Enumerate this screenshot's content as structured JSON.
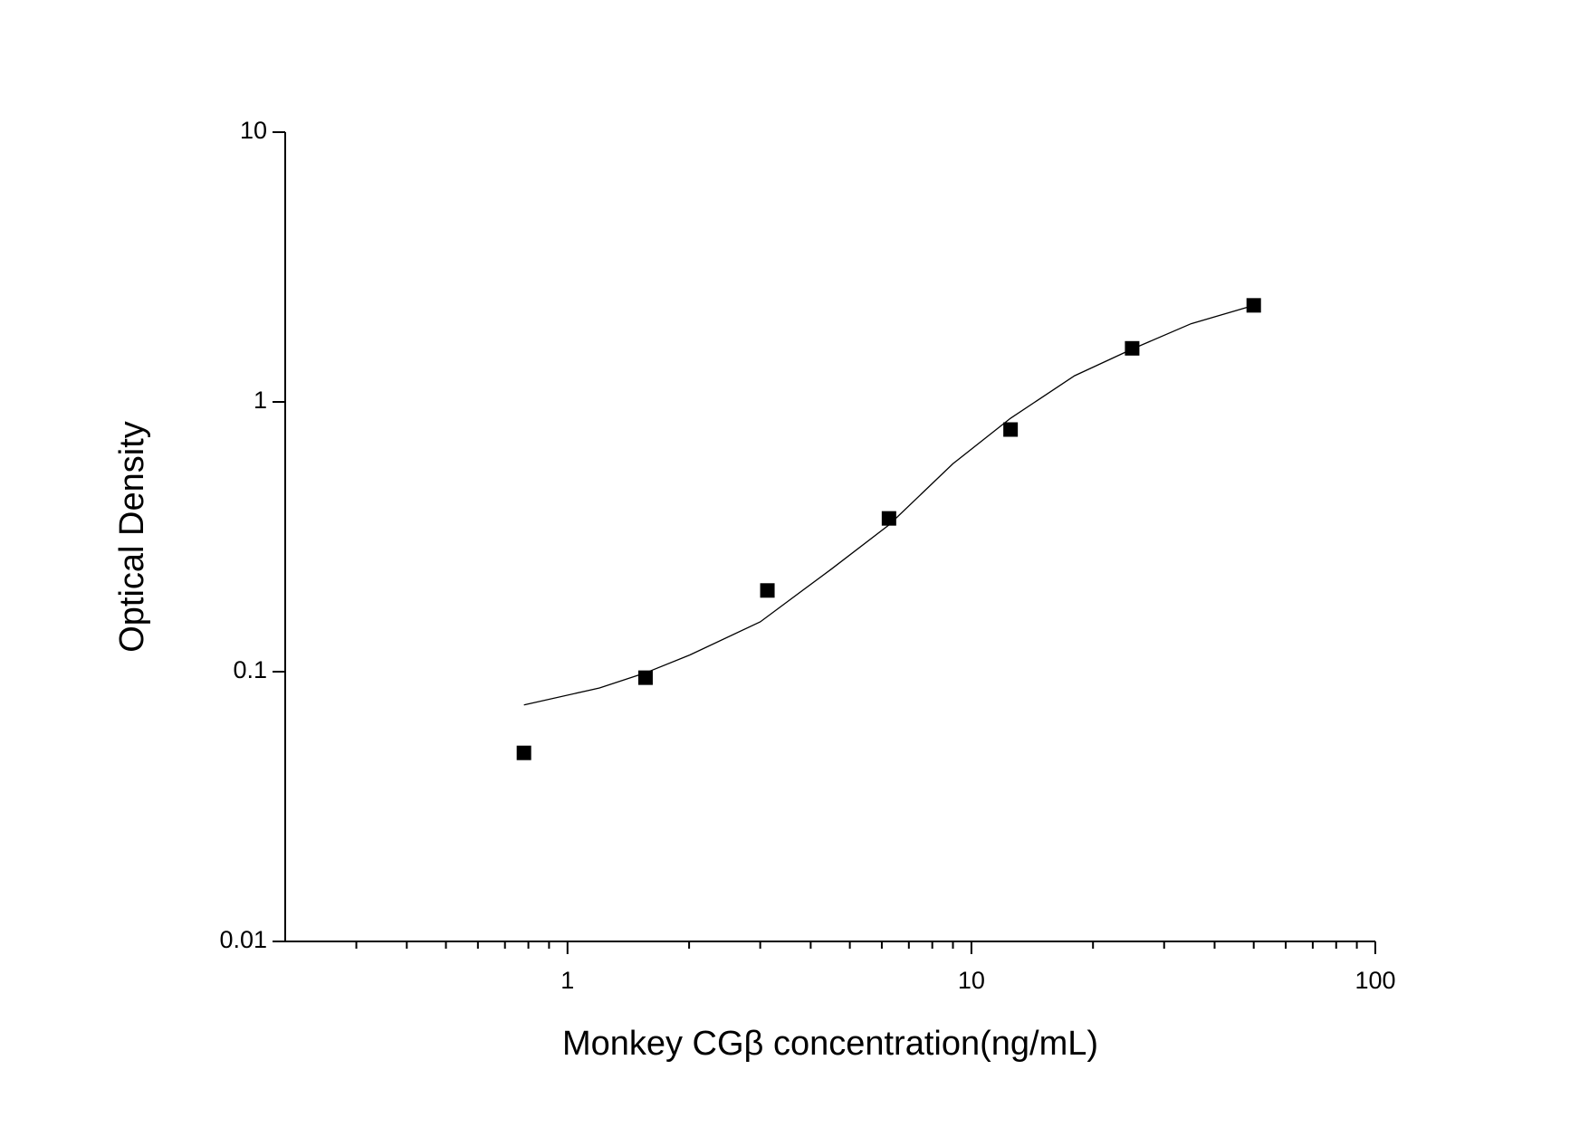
{
  "chart_data": {
    "type": "scatter",
    "xlabel": "Monkey CGβ  concentration(ng/mL)",
    "ylabel": "Optical Density",
    "xscale": "log",
    "yscale": "log",
    "xlim": [
      0.2,
      100
    ],
    "ylim": [
      0.01,
      10
    ],
    "xticks": [
      1,
      10,
      100
    ],
    "xminorticks": [
      0.3,
      0.4,
      0.5,
      0.6,
      0.7,
      0.8,
      0.9,
      2,
      3,
      4,
      5,
      6,
      7,
      8,
      9,
      20,
      30,
      40,
      50,
      60,
      70,
      80,
      90
    ],
    "yticks": [
      0.01,
      0.1,
      1,
      10
    ],
    "series": [
      {
        "color": "#000000",
        "marker": "square",
        "x": [
          0.78,
          1.56,
          3.125,
          6.25,
          12.5,
          25,
          50
        ],
        "values": [
          0.05,
          0.095,
          0.2,
          0.37,
          0.79,
          1.58,
          2.28
        ]
      },
      {
        "color": "#000000",
        "marker": "line",
        "x": [
          0.78,
          1.2,
          1.56,
          2,
          3,
          4.5,
          6.25,
          9,
          12.5,
          18,
          25,
          35,
          50
        ],
        "values": [
          0.0753,
          0.087,
          0.099,
          0.115,
          0.153,
          0.24,
          0.35,
          0.59,
          0.87,
          1.25,
          1.57,
          1.95,
          2.28
        ]
      }
    ]
  }
}
